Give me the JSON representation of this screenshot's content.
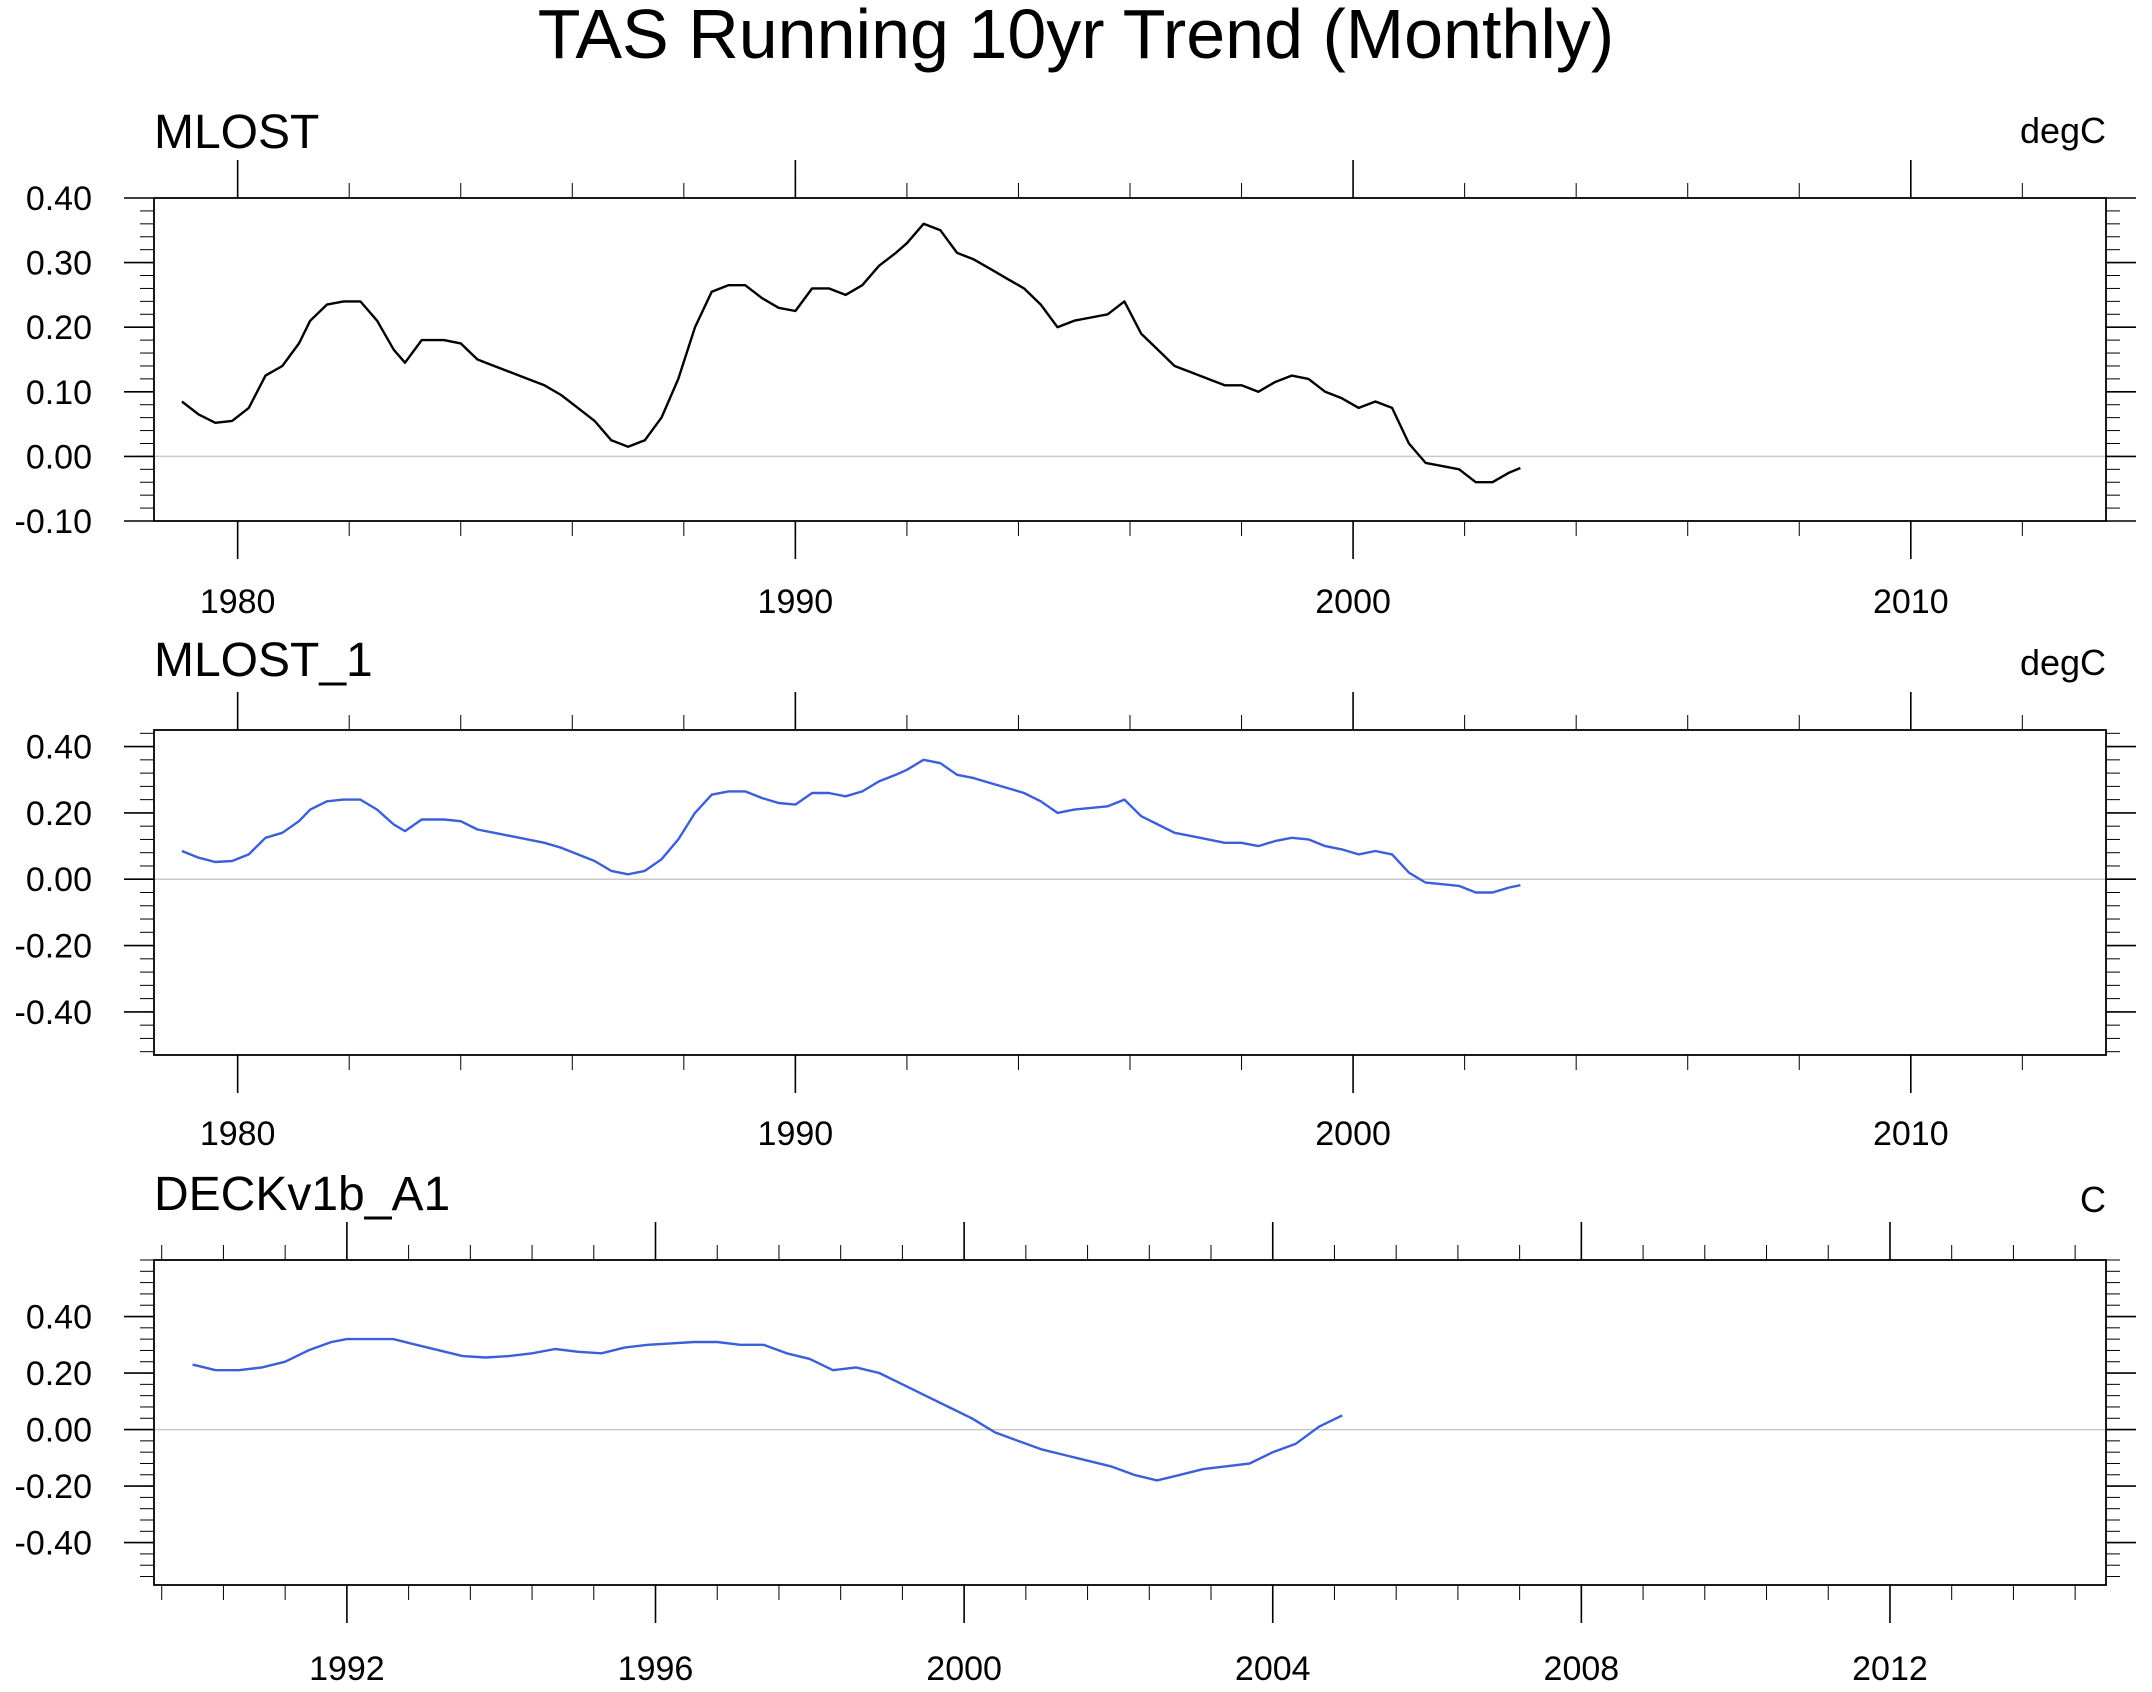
{
  "title": "TAS Running 10yr Trend (Monthly)",
  "chart_data": [
    {
      "type": "line",
      "title": "MLOST",
      "units": "degC",
      "xlim": [
        1978.5,
        2013.5
      ],
      "ylim": [
        -0.1,
        0.4
      ],
      "x_ticks": [
        1980,
        1990,
        2000,
        2010
      ],
      "y_ticks": [
        -0.1,
        0.0,
        0.1,
        0.2,
        0.3,
        0.4
      ],
      "y_tick_labels": [
        "-0.10",
        "0.00",
        "0.10",
        "0.20",
        "0.30",
        "0.40"
      ],
      "grid": false,
      "zero_line": true,
      "series": [
        {
          "color": "#000000",
          "x": [
            1979.0,
            1979.3,
            1979.6,
            1979.9,
            1980.2,
            1980.5,
            1980.8,
            1981.1,
            1981.3,
            1981.6,
            1981.9,
            1982.2,
            1982.5,
            1982.8,
            1983.0,
            1983.3,
            1983.7,
            1984.0,
            1984.3,
            1984.6,
            1984.9,
            1985.2,
            1985.5,
            1985.8,
            1986.1,
            1986.4,
            1986.7,
            1987.0,
            1987.3,
            1987.6,
            1987.9,
            1988.2,
            1988.5,
            1988.8,
            1989.1,
            1989.4,
            1989.7,
            1990.0,
            1990.3,
            1990.6,
            1990.9,
            1991.2,
            1991.5,
            1991.8,
            1992.0,
            1992.3,
            1992.6,
            1992.9,
            1993.2,
            1993.5,
            1993.8,
            1994.1,
            1994.4,
            1994.7,
            1995.0,
            1995.3,
            1995.6,
            1995.9,
            1996.2,
            1996.5,
            1996.8,
            1997.1,
            1997.4,
            1997.7,
            1998.0,
            1998.3,
            1998.6,
            1998.9,
            1999.2,
            1999.5,
            1999.8,
            2000.1,
            2000.4,
            2000.7,
            2001.0,
            2001.3,
            2001.6,
            2001.9,
            2002.2,
            2002.5,
            2002.8,
            2003.0
          ],
          "y": [
            0.085,
            0.065,
            0.052,
            0.055,
            0.075,
            0.125,
            0.14,
            0.175,
            0.21,
            0.235,
            0.24,
            0.24,
            0.21,
            0.165,
            0.145,
            0.18,
            0.18,
            0.175,
            0.15,
            0.14,
            0.13,
            0.12,
            0.11,
            0.095,
            0.075,
            0.055,
            0.025,
            0.015,
            0.025,
            0.06,
            0.12,
            0.2,
            0.255,
            0.265,
            0.265,
            0.245,
            0.23,
            0.225,
            0.26,
            0.26,
            0.25,
            0.265,
            0.295,
            0.315,
            0.33,
            0.36,
            0.35,
            0.315,
            0.305,
            0.29,
            0.275,
            0.26,
            0.235,
            0.2,
            0.21,
            0.215,
            0.22,
            0.24,
            0.19,
            0.165,
            0.14,
            0.13,
            0.12,
            0.11,
            0.11,
            0.1,
            0.115,
            0.125,
            0.12,
            0.1,
            0.09,
            0.075,
            0.085,
            0.075,
            0.02,
            -0.01,
            -0.015,
            -0.02,
            -0.04,
            -0.04,
            -0.025,
            -0.018
          ]
        }
      ]
    },
    {
      "type": "line",
      "title": "MLOST_1",
      "units": "degC",
      "xlim": [
        1978.5,
        2013.5
      ],
      "ylim": [
        -0.53,
        0.45
      ],
      "x_ticks": [
        1980,
        1990,
        2000,
        2010
      ],
      "y_ticks": [
        -0.4,
        -0.2,
        0.0,
        0.2,
        0.4
      ],
      "y_tick_labels": [
        "-0.40",
        "-0.20",
        "0.00",
        "0.20",
        "0.40"
      ],
      "grid": false,
      "zero_line": true,
      "series": [
        {
          "color": "#3a5fd9",
          "x": [
            1979.0,
            1979.3,
            1979.6,
            1979.9,
            1980.2,
            1980.5,
            1980.8,
            1981.1,
            1981.3,
            1981.6,
            1981.9,
            1982.2,
            1982.5,
            1982.8,
            1983.0,
            1983.3,
            1983.7,
            1984.0,
            1984.3,
            1984.6,
            1984.9,
            1985.2,
            1985.5,
            1985.8,
            1986.1,
            1986.4,
            1986.7,
            1987.0,
            1987.3,
            1987.6,
            1987.9,
            1988.2,
            1988.5,
            1988.8,
            1989.1,
            1989.4,
            1989.7,
            1990.0,
            1990.3,
            1990.6,
            1990.9,
            1991.2,
            1991.5,
            1991.8,
            1992.0,
            1992.3,
            1992.6,
            1992.9,
            1993.2,
            1993.5,
            1993.8,
            1994.1,
            1994.4,
            1994.7,
            1995.0,
            1995.3,
            1995.6,
            1995.9,
            1996.2,
            1996.5,
            1996.8,
            1997.1,
            1997.4,
            1997.7,
            1998.0,
            1998.3,
            1998.6,
            1998.9,
            1999.2,
            1999.5,
            1999.8,
            2000.1,
            2000.4,
            2000.7,
            2001.0,
            2001.3,
            2001.6,
            2001.9,
            2002.2,
            2002.5,
            2002.8,
            2003.0
          ],
          "y": [
            0.085,
            0.065,
            0.052,
            0.055,
            0.075,
            0.125,
            0.14,
            0.175,
            0.21,
            0.235,
            0.24,
            0.24,
            0.21,
            0.165,
            0.145,
            0.18,
            0.18,
            0.175,
            0.15,
            0.14,
            0.13,
            0.12,
            0.11,
            0.095,
            0.075,
            0.055,
            0.025,
            0.015,
            0.025,
            0.06,
            0.12,
            0.2,
            0.255,
            0.265,
            0.265,
            0.245,
            0.23,
            0.225,
            0.26,
            0.26,
            0.25,
            0.265,
            0.295,
            0.315,
            0.33,
            0.36,
            0.35,
            0.315,
            0.305,
            0.29,
            0.275,
            0.26,
            0.235,
            0.2,
            0.21,
            0.215,
            0.22,
            0.24,
            0.19,
            0.165,
            0.14,
            0.13,
            0.12,
            0.11,
            0.11,
            0.1,
            0.115,
            0.125,
            0.12,
            0.1,
            0.09,
            0.075,
            0.085,
            0.075,
            0.02,
            -0.01,
            -0.015,
            -0.02,
            -0.04,
            -0.04,
            -0.025,
            -0.018
          ]
        }
      ]
    },
    {
      "type": "line",
      "title": "DECKv1b_A1",
      "units": "C",
      "xlim": [
        1989.5,
        2014.8
      ],
      "ylim": [
        -0.55,
        0.6
      ],
      "x_ticks": [
        1992,
        1996,
        2000,
        2004,
        2008,
        2012
      ],
      "y_ticks": [
        -0.4,
        -0.2,
        0.0,
        0.2,
        0.4
      ],
      "y_tick_labels": [
        "-0.40",
        "-0.20",
        "0.00",
        "0.20",
        "0.40"
      ],
      "grid": false,
      "zero_line": true,
      "series": [
        {
          "color": "#3a5fd9",
          "x": [
            1990.0,
            1990.3,
            1990.6,
            1990.9,
            1991.2,
            1991.5,
            1991.8,
            1992.0,
            1992.3,
            1992.6,
            1992.9,
            1993.2,
            1993.5,
            1993.8,
            1994.1,
            1994.4,
            1994.7,
            1995.0,
            1995.3,
            1995.6,
            1995.9,
            1996.2,
            1996.5,
            1996.8,
            1997.1,
            1997.4,
            1997.7,
            1998.0,
            1998.3,
            1998.6,
            1998.9,
            1999.2,
            1999.5,
            1999.8,
            2000.1,
            2000.4,
            2000.7,
            2001.0,
            2001.3,
            2001.6,
            2001.9,
            2002.2,
            2002.5,
            2002.8,
            2003.1,
            2003.4,
            2003.7,
            2004.0,
            2004.3,
            2004.6,
            2004.9
          ],
          "y": [
            0.23,
            0.21,
            0.21,
            0.22,
            0.24,
            0.28,
            0.31,
            0.32,
            0.32,
            0.32,
            0.3,
            0.28,
            0.26,
            0.255,
            0.26,
            0.27,
            0.285,
            0.275,
            0.27,
            0.29,
            0.3,
            0.305,
            0.31,
            0.31,
            0.3,
            0.3,
            0.27,
            0.25,
            0.21,
            0.22,
            0.2,
            0.16,
            0.12,
            0.08,
            0.04,
            -0.01,
            -0.04,
            -0.07,
            -0.09,
            -0.11,
            -0.13,
            -0.16,
            -0.18,
            -0.16,
            -0.14,
            -0.13,
            -0.12,
            -0.08,
            -0.05,
            0.01,
            0.05
          ]
        }
      ]
    }
  ]
}
